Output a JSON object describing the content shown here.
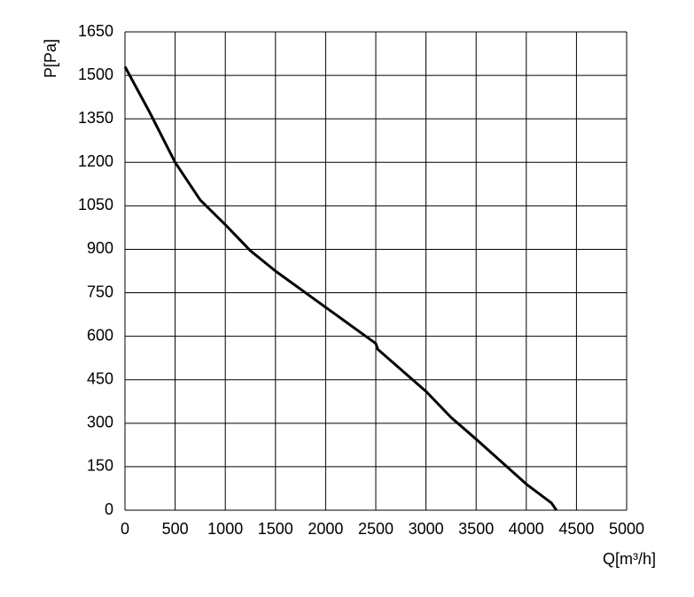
{
  "chart_data": {
    "type": "line",
    "x_label": "Q[m³/h]",
    "y_label": "P[Pa]",
    "x": [
      0,
      250,
      500,
      750,
      1000,
      1250,
      1500,
      2000,
      2500,
      2520,
      3000,
      3250,
      3500,
      4000,
      4250,
      4300
    ],
    "series": [
      {
        "color": "#000000",
        "values": [
          1530,
          1370,
          1200,
          1070,
          985,
          895,
          825,
          700,
          575,
          555,
          410,
          320,
          245,
          90,
          25,
          0
        ]
      }
    ],
    "xlim": [
      0,
      5000
    ],
    "xticks": [
      0,
      500,
      1000,
      1500,
      2000,
      2500,
      3000,
      3500,
      4000,
      4500,
      5000
    ],
    "ylim": [
      0,
      1650
    ],
    "yticks": [
      0,
      150,
      300,
      450,
      600,
      750,
      900,
      1050,
      1200,
      1350,
      1500,
      1650
    ],
    "grid": true
  }
}
